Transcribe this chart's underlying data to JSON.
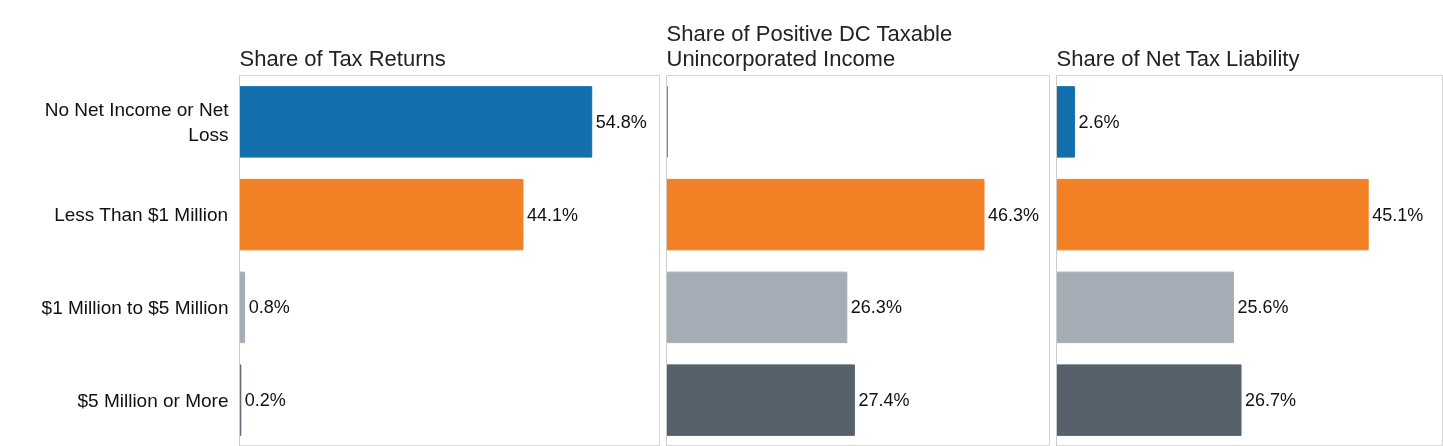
{
  "chart_data": [
    {
      "type": "bar",
      "orientation": "horizontal",
      "title": "Share of Tax Returns",
      "categories": [
        "No Net Income or Net Loss",
        "Less Than $1 Million",
        "$1 Million to $5 Million",
        "$5 Million or More"
      ],
      "values": [
        54.8,
        44.1,
        0.8,
        0.2
      ],
      "colors": [
        "#1470ad",
        "#f28024",
        "#a5acb5",
        "#56616c"
      ],
      "xlim": [
        0,
        65.5
      ],
      "tick_labels": "y",
      "value_labels": [
        "54.8%",
        "44.1%",
        "0.8%",
        "0.2%"
      ]
    },
    {
      "type": "bar",
      "orientation": "horizontal",
      "title": "Share of Positive DC Taxable Unincorporated Income",
      "categories": [
        "No Net Income or Net Loss",
        "Less Than $1 Million",
        "$1 Million to $5 Million",
        "$5 Million or More"
      ],
      "values": [
        0.1,
        46.3,
        26.3,
        27.4
      ],
      "colors": [
        "#1470ad",
        "#f28024",
        "#a5acb5",
        "#56616c"
      ],
      "xlim": [
        0,
        56
      ],
      "tick_labels": false,
      "value_labels": [
        null,
        "46.3%",
        "26.3%",
        "27.4%"
      ]
    },
    {
      "type": "bar",
      "orientation": "horizontal",
      "title": "Share of Net Tax Liability",
      "categories": [
        "No Net Income or Net Loss",
        "Less Than $1 Million",
        "$1 Million to $5 Million",
        "$5 Million or More"
      ],
      "values": [
        2.6,
        45.1,
        25.6,
        26.7
      ],
      "colors": [
        "#1470ad",
        "#f28024",
        "#a5acb5",
        "#56616c"
      ],
      "xlim": [
        0,
        56
      ],
      "tick_labels": false,
      "value_labels": [
        "2.6%",
        "45.1%",
        "25.6%",
        "26.7%"
      ]
    }
  ]
}
